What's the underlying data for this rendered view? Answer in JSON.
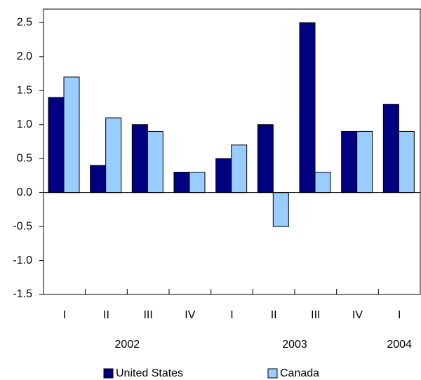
{
  "chart_data": {
    "type": "bar",
    "categories": [
      "I",
      "II",
      "III",
      "IV",
      "I",
      "II",
      "III",
      "IV",
      "I"
    ],
    "groups": [
      {
        "label": "2002",
        "span": 4
      },
      {
        "label": "2003",
        "span": 4
      },
      {
        "label": "2004",
        "span": 1
      }
    ],
    "series": [
      {
        "name": "United States",
        "color": "#000080",
        "values": [
          1.4,
          0.4,
          1.0,
          0.3,
          0.5,
          1.0,
          2.5,
          0.9,
          1.3
        ]
      },
      {
        "name": "Canada",
        "color": "#99ccff",
        "values": [
          1.7,
          1.1,
          0.9,
          0.3,
          0.7,
          -0.5,
          0.3,
          0.9,
          0.9
        ]
      }
    ],
    "ylim": [
      -1.5,
      2.7
    ],
    "yticks": [
      2.5,
      {
        "value": 2,
        "label": "2.0"
      },
      1.5,
      {
        "value": 1,
        "label": "1.0"
      },
      0.5,
      {
        "value": 0,
        "label": "0.0"
      },
      -0.5,
      {
        "value": -1,
        "label": "-1.0"
      },
      -1.5
    ],
    "legend": "bottom"
  }
}
